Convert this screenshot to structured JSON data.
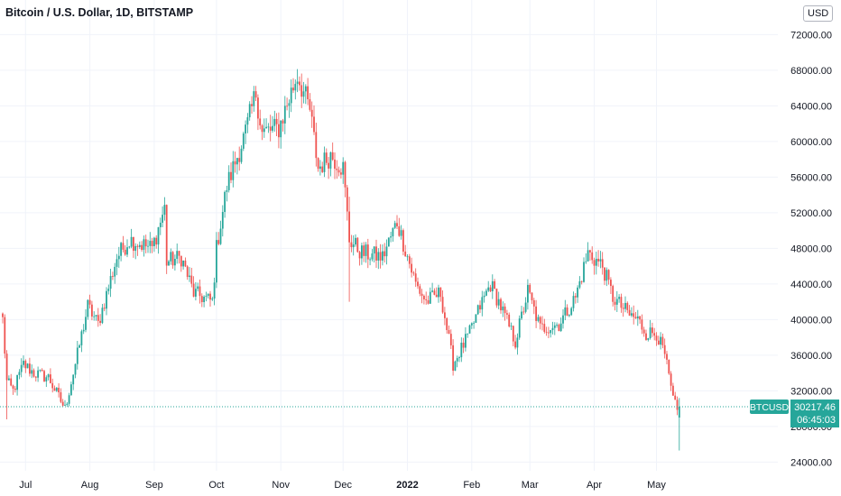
{
  "header": {
    "title": "Bitcoin / U.S. Dollar, 1D, BITSTAMP",
    "currency": "USD"
  },
  "price_label": {
    "symbol": "BTCUSD",
    "price": "30217.46",
    "countdown": "06:45:03",
    "value": 30217.46
  },
  "colors": {
    "up": "#26a69a",
    "down": "#ef5350",
    "grid": "#f0f3fa",
    "axis_text": "#131722",
    "price_line": "#26a69a"
  },
  "chart_data": {
    "type": "candlestick",
    "title": "Bitcoin / U.S. Dollar, 1D, BITSTAMP",
    "xlabel": "",
    "ylabel": "",
    "ylim": [
      22400,
      73600
    ],
    "y_ticks": [
      24000,
      28000,
      32000,
      36000,
      40000,
      44000,
      48000,
      52000,
      56000,
      60000,
      64000,
      68000,
      72000
    ],
    "y_tick_labels": [
      "24000.00",
      "28000.00",
      "32000.00",
      "36000.00",
      "40000.00",
      "44000.00",
      "48000.00",
      "52000.00",
      "56000.00",
      "60000.00",
      "64000.00",
      "68000.00",
      "72000.00"
    ],
    "x_ticks": [
      {
        "label": "Jul",
        "date": "2021-07-01",
        "bold": false
      },
      {
        "label": "Aug",
        "date": "2021-08-01",
        "bold": false
      },
      {
        "label": "Sep",
        "date": "2021-09-01",
        "bold": false
      },
      {
        "label": "Oct",
        "date": "2021-10-01",
        "bold": false
      },
      {
        "label": "Nov",
        "date": "2021-11-01",
        "bold": false
      },
      {
        "label": "Dec",
        "date": "2021-12-01",
        "bold": false
      },
      {
        "label": "2022",
        "date": "2022-01-01",
        "bold": true
      },
      {
        "label": "Feb",
        "date": "2022-02-01",
        "bold": false
      },
      {
        "label": "Mar",
        "date": "2022-03-01",
        "bold": false
      },
      {
        "label": "Apr",
        "date": "2022-04-01",
        "bold": false
      },
      {
        "label": "May",
        "date": "2022-05-01",
        "bold": false
      }
    ],
    "grid": true,
    "start_date": "2021-06-20",
    "end_date": "2022-05-12",
    "anchors": [
      [
        "2021-06-20",
        40000
      ],
      [
        "2021-06-22",
        33000
      ],
      [
        "2021-06-25",
        32000
      ],
      [
        "2021-06-30",
        35000
      ],
      [
        "2021-07-05",
        34000
      ],
      [
        "2021-07-12",
        33500
      ],
      [
        "2021-07-20",
        30000
      ],
      [
        "2021-07-25",
        35000
      ],
      [
        "2021-07-31",
        41500
      ],
      [
        "2021-08-05",
        39500
      ],
      [
        "2021-08-14",
        47000
      ],
      [
        "2021-08-20",
        49000
      ],
      [
        "2021-08-31",
        48000
      ],
      [
        "2021-09-06",
        52500
      ],
      [
        "2021-09-07",
        46500
      ],
      [
        "2021-09-14",
        47000
      ],
      [
        "2021-09-20",
        43000
      ],
      [
        "2021-09-29",
        42000
      ],
      [
        "2021-10-01",
        48000
      ],
      [
        "2021-10-06",
        55000
      ],
      [
        "2021-10-15",
        61000
      ],
      [
        "2021-10-20",
        65500
      ],
      [
        "2021-10-23",
        61000
      ],
      [
        "2021-10-31",
        61500
      ],
      [
        "2021-11-09",
        67500
      ],
      [
        "2021-11-15",
        63500
      ],
      [
        "2021-11-19",
        57000
      ],
      [
        "2021-11-25",
        58500
      ],
      [
        "2021-12-01",
        57000
      ],
      [
        "2021-12-04",
        49000
      ],
      [
        "2021-12-10",
        47500
      ],
      [
        "2021-12-20",
        47000
      ],
      [
        "2021-12-27",
        51000
      ],
      [
        "2022-01-05",
        44000
      ],
      [
        "2022-01-10",
        42000
      ],
      [
        "2022-01-17",
        43000
      ],
      [
        "2022-01-23",
        35000
      ],
      [
        "2022-01-31",
        38500
      ],
      [
        "2022-02-05",
        41500
      ],
      [
        "2022-02-10",
        44000
      ],
      [
        "2022-02-14",
        42000
      ],
      [
        "2022-02-22",
        37500
      ],
      [
        "2022-02-28",
        43200
      ],
      [
        "2022-03-06",
        39000
      ],
      [
        "2022-03-15",
        39500
      ],
      [
        "2022-03-23",
        42500
      ],
      [
        "2022-03-29",
        47500
      ],
      [
        "2022-04-05",
        46000
      ],
      [
        "2022-04-10",
        42500
      ],
      [
        "2022-04-18",
        40500
      ],
      [
        "2022-04-22",
        40000
      ],
      [
        "2022-04-26",
        38500
      ],
      [
        "2022-05-01",
        38500
      ],
      [
        "2022-05-05",
        36000
      ],
      [
        "2022-05-09",
        31000
      ],
      [
        "2022-05-12",
        29000
      ]
    ],
    "special_wicks": [
      {
        "date": "2021-06-22",
        "low": 28800
      },
      {
        "date": "2021-12-04",
        "low": 42000,
        "high": 53800
      },
      {
        "date": "2022-05-12",
        "low": 25300
      }
    ],
    "last": {
      "open": 29000,
      "close": 30217.46,
      "high": 31200,
      "low": 28700
    }
  }
}
